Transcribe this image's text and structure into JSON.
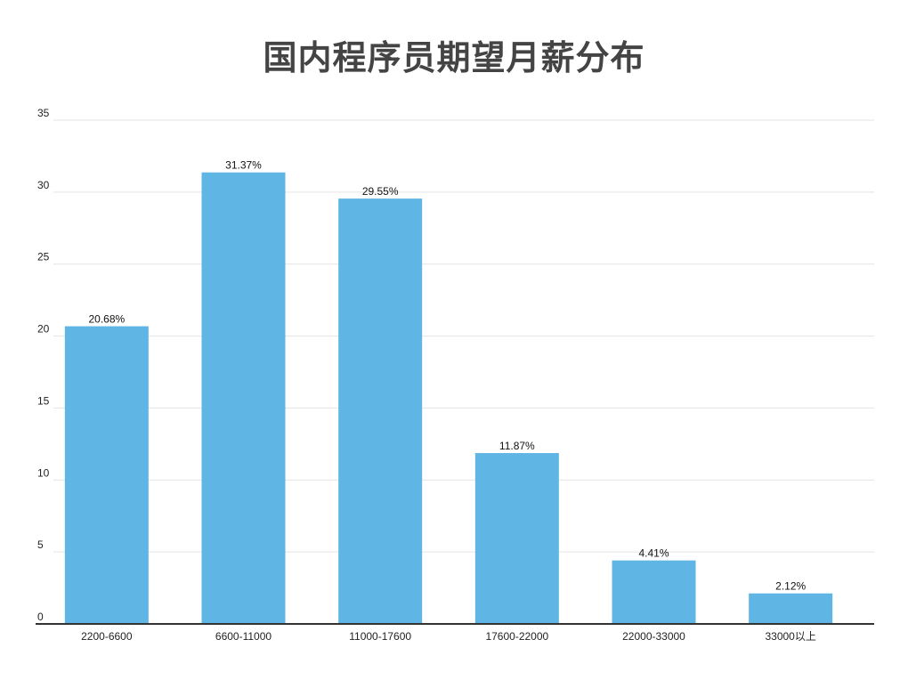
{
  "chart_data": {
    "type": "bar",
    "title": "国内程序员期望月薪分布",
    "xlabel": "",
    "ylabel": "",
    "categories": [
      "2200-6600",
      "6600-11000",
      "11000-17600",
      "17600-22000",
      "22000-33000",
      "33000以上"
    ],
    "values": [
      20.68,
      31.37,
      29.55,
      11.87,
      4.41,
      2.12
    ],
    "data_labels": [
      "20.68%",
      "31.37%",
      "29.55%",
      "11.87%",
      "4.41%",
      "2.12%"
    ],
    "ylim": [
      0,
      35
    ],
    "yticks": [
      0,
      5,
      10,
      15,
      20,
      25,
      30,
      35
    ],
    "grid": true,
    "legend": "none",
    "bar_color": "#5fb5e3",
    "grid_color": "#e3e3e3",
    "axis_color": "#333333"
  }
}
